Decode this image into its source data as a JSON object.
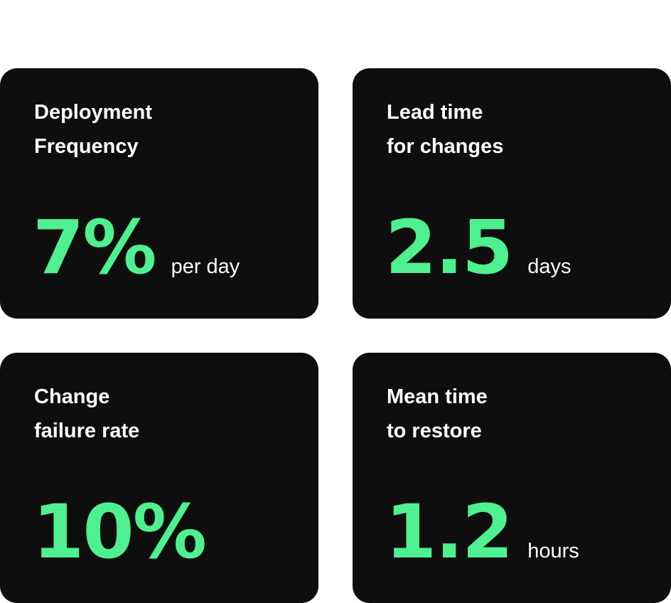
{
  "metrics": [
    {
      "title_line1": "Deployment",
      "title_line2": "Frequency",
      "value": "7%",
      "unit": "per day"
    },
    {
      "title_line1": "Lead time",
      "title_line2": "for changes",
      "value": "2.5",
      "unit": "days"
    },
    {
      "title_line1": "Change",
      "title_line2": "failure rate",
      "value": "10%",
      "unit": ""
    },
    {
      "title_line1": "Mean time",
      "title_line2": "to restore",
      "value": "1.2",
      "unit": "hours"
    }
  ],
  "colors": {
    "accent": "#4ff08f",
    "card": "#0e0e0e"
  }
}
